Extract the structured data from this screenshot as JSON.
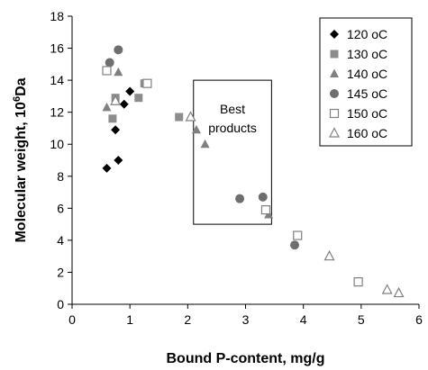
{
  "chart_data": {
    "type": "scatter",
    "title": "",
    "xlabel": "Bound P-content, mg/g",
    "ylabel_main": "Molecular weight, 10",
    "ylabel_sup": "6",
    "ylabel_unit": "Da",
    "xlim": [
      0,
      6
    ],
    "ylim": [
      0,
      18
    ],
    "x_ticks": [
      0,
      1,
      2,
      3,
      4,
      5,
      6
    ],
    "y_ticks": [
      0,
      2,
      4,
      6,
      8,
      10,
      12,
      14,
      16,
      18
    ],
    "grid": false,
    "legend_position": "top-right",
    "series": [
      {
        "name": "120 oC",
        "marker": "diamond",
        "color": "#000000",
        "points": [
          [
            0.6,
            8.5
          ],
          [
            0.8,
            9.0
          ],
          [
            0.75,
            10.9
          ],
          [
            0.9,
            12.5
          ],
          [
            1.0,
            13.3
          ]
        ]
      },
      {
        "name": "130 oC",
        "marker": "square",
        "color": "#8c8c8c",
        "points": [
          [
            0.7,
            11.6
          ],
          [
            0.75,
            12.9
          ],
          [
            1.15,
            12.9
          ],
          [
            1.25,
            13.8
          ],
          [
            1.85,
            11.7
          ]
        ]
      },
      {
        "name": "140 oC",
        "marker": "triangle",
        "color": "#808080",
        "points": [
          [
            0.6,
            12.3
          ],
          [
            0.8,
            14.5
          ],
          [
            2.15,
            10.9
          ],
          [
            2.3,
            10.0
          ],
          [
            3.4,
            5.6
          ]
        ]
      },
      {
        "name": "145 oC",
        "marker": "circle",
        "color": "#6e6e6e",
        "points": [
          [
            0.65,
            15.1
          ],
          [
            0.8,
            15.9
          ],
          [
            2.9,
            6.6
          ],
          [
            3.3,
            6.7
          ],
          [
            3.85,
            3.7
          ]
        ]
      },
      {
        "name": "150 oC",
        "marker": "open-square",
        "color": "#808080",
        "points": [
          [
            0.6,
            14.6
          ],
          [
            1.3,
            13.8
          ],
          [
            3.35,
            5.9
          ],
          [
            3.9,
            4.3
          ],
          [
            4.95,
            1.4
          ]
        ]
      },
      {
        "name": "160 oC",
        "marker": "open-triangle",
        "color": "#808080",
        "points": [
          [
            0.75,
            12.7
          ],
          [
            2.05,
            11.7
          ],
          [
            4.45,
            3.0
          ],
          [
            5.45,
            0.9
          ],
          [
            5.65,
            0.7
          ]
        ]
      }
    ],
    "annotation": {
      "line1": "Best",
      "line2": "products",
      "box_x": [
        2.1,
        3.45
      ],
      "box_y": [
        5.0,
        14.0
      ]
    }
  }
}
